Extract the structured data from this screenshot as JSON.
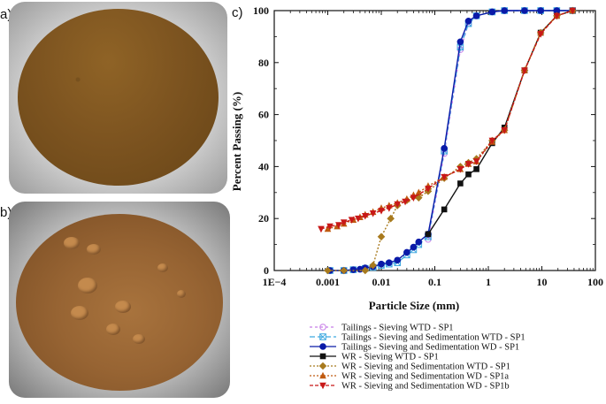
{
  "panels": {
    "a": "a)",
    "b": "b)",
    "c": "c)"
  },
  "chart_data": {
    "type": "line",
    "xlabel": "Particle Size (mm)",
    "ylabel": "Percent Passing (%)",
    "xscale": "log",
    "xlim": [
      0.0001,
      100
    ],
    "ylim": [
      0,
      100
    ],
    "xticks": [
      0.0001,
      0.001,
      0.01,
      0.1,
      1,
      10,
      100
    ],
    "xtick_labels": [
      "1E−4",
      "0.001",
      "0.01",
      "0.1",
      "1",
      "10",
      "100"
    ],
    "yticks": [
      0,
      20,
      40,
      60,
      80,
      100
    ],
    "ytick_labels": [
      "0",
      "20",
      "40",
      "60",
      "80",
      "100"
    ],
    "grid": false,
    "legend_position": "bottom",
    "series": [
      {
        "name": "Tailings - Sieving WTD - SP1",
        "color": "#c77de8",
        "marker": "circle-open",
        "dash": "3,3",
        "x": [
          0.075,
          0.15,
          0.3,
          0.425,
          0.6,
          1.18,
          2,
          4.75,
          9.5,
          19,
          37.5
        ],
        "y": [
          12,
          45,
          85,
          95,
          98,
          99.5,
          100,
          100,
          100,
          100,
          100
        ]
      },
      {
        "name": "Tailings - Sieving and Sedimentation WTD - SP1",
        "color": "#3fa9e0",
        "marker": "square-x",
        "dash": "6,3",
        "x": [
          0.0011,
          0.002,
          0.003,
          0.005,
          0.007,
          0.01,
          0.014,
          0.02,
          0.03,
          0.04,
          0.05,
          0.075,
          0.15,
          0.3,
          0.425,
          0.6,
          1.18,
          2,
          4.75,
          9.5,
          19,
          37.5
        ],
        "y": [
          0,
          0,
          0.3,
          0.8,
          1.2,
          2,
          2.5,
          3,
          6,
          8,
          10,
          13,
          46,
          86,
          95,
          98,
          99.5,
          100,
          100,
          100,
          100,
          100
        ]
      },
      {
        "name": "Tailings - Sieving and Sedimentation WD - SP1",
        "color": "#0a1aa8",
        "marker": "circle",
        "dash": "",
        "x": [
          0.0011,
          0.002,
          0.003,
          0.004,
          0.005,
          0.007,
          0.01,
          0.014,
          0.02,
          0.03,
          0.04,
          0.05,
          0.075,
          0.15,
          0.3,
          0.425,
          0.6,
          1.18,
          2,
          4.75,
          9.5,
          19,
          37.5
        ],
        "y": [
          0,
          0,
          0.3,
          0.5,
          1,
          1.5,
          2.5,
          3,
          4,
          7,
          9,
          11,
          14,
          47,
          88,
          96,
          98,
          99.5,
          100,
          100,
          100,
          100,
          100
        ]
      },
      {
        "name": "WR - Sieving WTD - SP1",
        "color": "#111111",
        "marker": "square",
        "dash": "",
        "x": [
          0.075,
          0.15,
          0.3,
          0.425,
          0.6,
          1.18,
          2,
          4.75,
          9.5,
          19,
          37.5
        ],
        "y": [
          14,
          23.5,
          33.5,
          37,
          39,
          49,
          55,
          77,
          91.5,
          98,
          100
        ]
      },
      {
        "name": "WR - Sieving and Sedimentation WTD - SP1",
        "color": "#a87a1e",
        "marker": "diamond",
        "dash": "2,2",
        "x": [
          0.001,
          0.002,
          0.005,
          0.007,
          0.01,
          0.015,
          0.02,
          0.03,
          0.05,
          0.075,
          0.15,
          0.3,
          0.425,
          0.6,
          1.18,
          2,
          4.75,
          9.5,
          19,
          37.5
        ],
        "y": [
          0,
          0,
          0,
          2,
          13,
          20,
          25,
          27,
          28,
          30.5,
          35.5,
          40,
          41.5,
          43,
          50,
          54,
          77,
          91.5,
          98,
          100
        ]
      },
      {
        "name": "WR - Sieving and Sedimentation WD - SP1a",
        "color": "#c05a10",
        "marker": "triangle-up",
        "dash": "2,2",
        "x": [
          0.001,
          0.0015,
          0.002,
          0.003,
          0.004,
          0.005,
          0.007,
          0.01,
          0.014,
          0.02,
          0.03,
          0.04,
          0.05,
          0.075,
          0.15,
          0.3,
          0.425,
          0.6,
          1.18,
          2,
          4.75,
          9.5,
          19,
          37.5
        ],
        "y": [
          16,
          17,
          18,
          19.5,
          20.5,
          21.5,
          22.5,
          24,
          25,
          26,
          27.5,
          29,
          30,
          32.5,
          36,
          39,
          41,
          42,
          49.5,
          54,
          77,
          91.5,
          98,
          100
        ]
      },
      {
        "name": "WR - Sieving and Sedimentation WD - SP1b",
        "color": "#c81818",
        "marker": "triangle-down",
        "dash": "4,2",
        "x": [
          0.00075,
          0.0011,
          0.0016,
          0.002,
          0.0028,
          0.0037,
          0.005,
          0.007,
          0.01,
          0.014,
          0.02,
          0.028,
          0.04,
          0.075,
          0.15,
          0.3,
          0.425,
          0.6,
          1.18,
          2,
          4.75,
          9.5,
          19,
          37.5
        ],
        "y": [
          16,
          17,
          17.5,
          18.5,
          19.5,
          20,
          21,
          22,
          23,
          24,
          25.5,
          26.5,
          28,
          31.5,
          36,
          39,
          41,
          42,
          50,
          54,
          77,
          91,
          98,
          100
        ]
      }
    ]
  }
}
